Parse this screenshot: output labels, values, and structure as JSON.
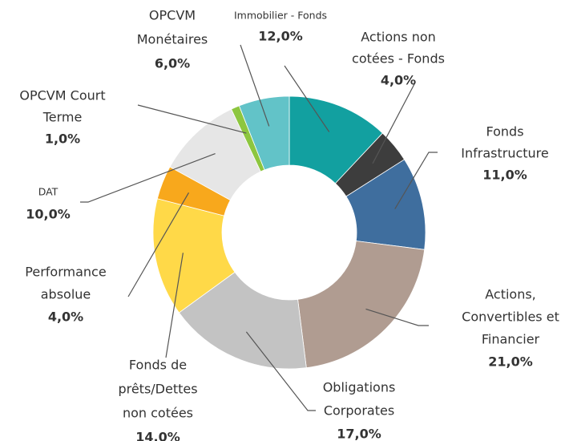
{
  "chart_data": {
    "type": "donut",
    "categories": [
      [
        "Immobilier - Fonds"
      ],
      [
        "Actions non",
        "cotées - Fonds"
      ],
      [
        "Fonds",
        "Infrastructure"
      ],
      [
        "Actions,",
        "Convertibles et",
        "Financier"
      ],
      [
        "Obligations",
        "Corporates"
      ],
      [
        "Fonds de",
        "prêts/Dettes",
        "non cotées"
      ],
      [
        "Performance",
        "absolue"
      ],
      [
        "DAT"
      ],
      [
        "OPCVM Court",
        "Terme"
      ],
      [
        "OPCVM",
        "Monétaires"
      ]
    ],
    "values": [
      12,
      4,
      11,
      21,
      17,
      14,
      4,
      10,
      1,
      6
    ],
    "value_labels": [
      "12,0%",
      "4,0%",
      "11,0%",
      "21,0%",
      "17,0%",
      "14,0%",
      "4,0%",
      "10,0%",
      "1,0%",
      "6,0%"
    ],
    "colors": [
      "#12a0a0",
      "#3d3d3d",
      "#3f6e9e",
      "#b09c91",
      "#c3c3c3",
      "#ffd948",
      "#f8a81c",
      "#e6e6e6",
      "#8dc63f",
      "#62c3c8"
    ]
  }
}
